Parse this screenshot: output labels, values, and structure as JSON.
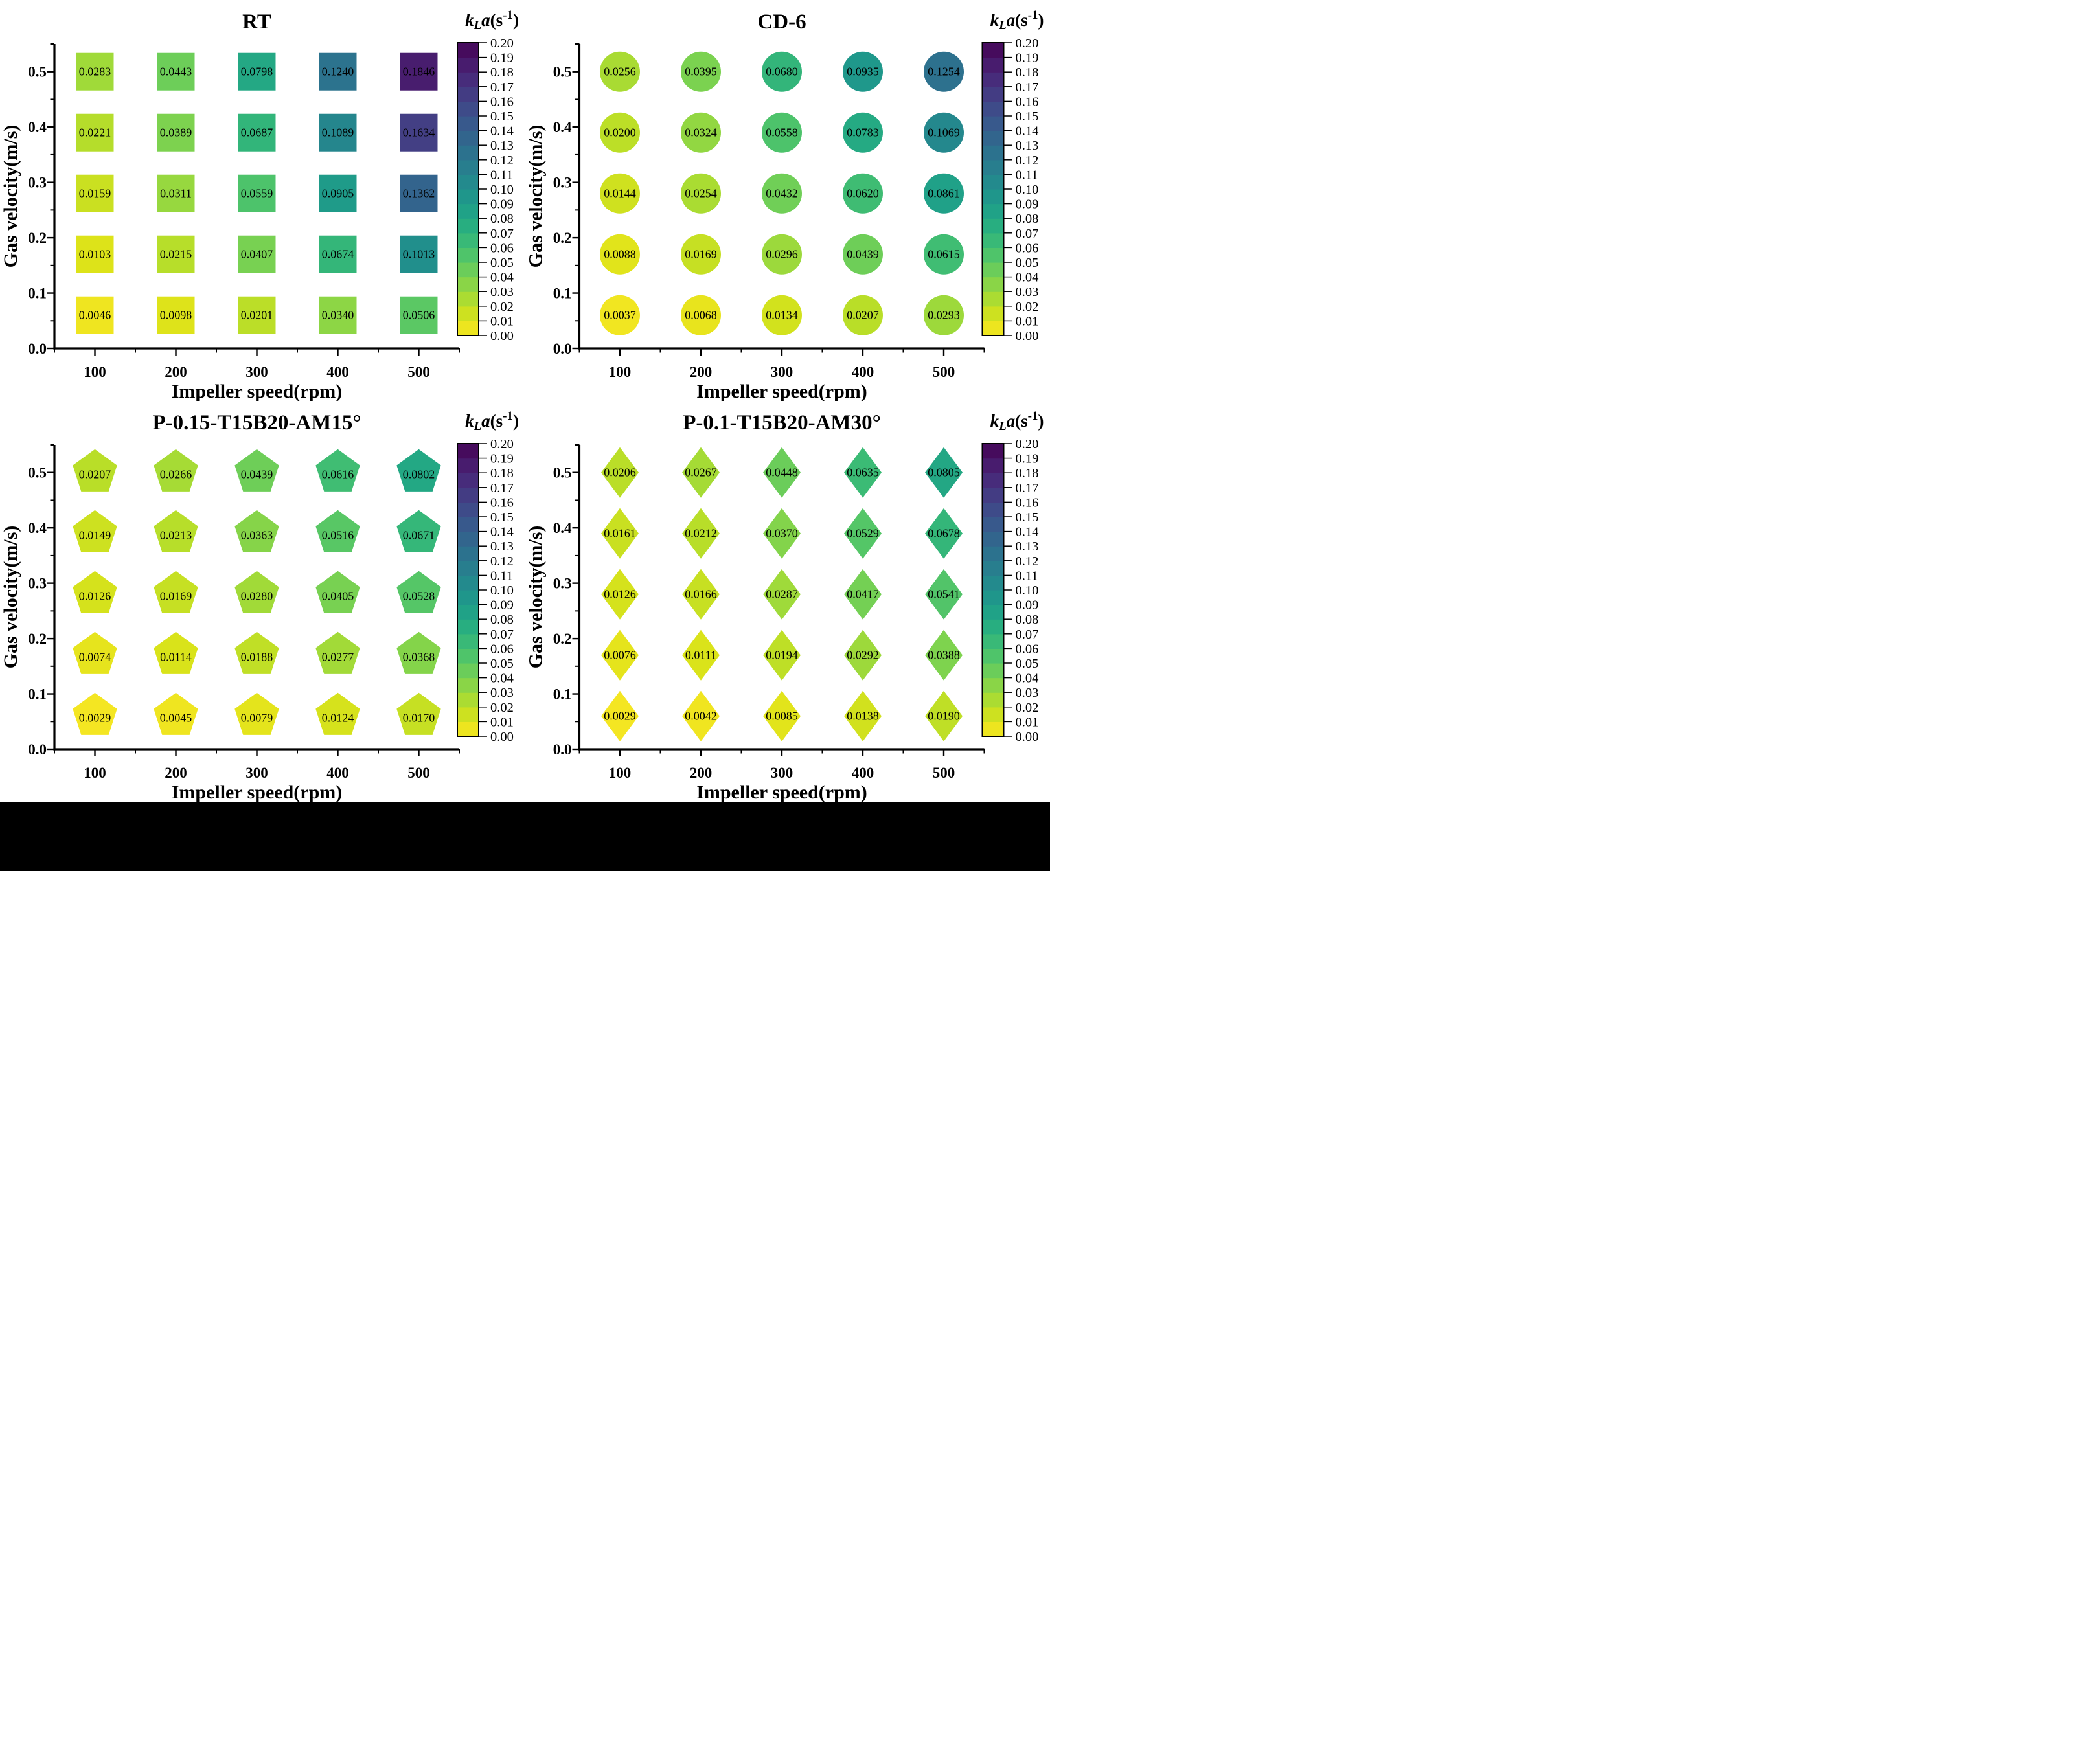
{
  "figure": {
    "background_color": "#ffffff",
    "bottom_bar_color": "#000000",
    "text_color": "#000000",
    "axes_shared": {
      "xlabel": "Impeller speed(rpm)",
      "ylabel": "Gas velocity(m/s)",
      "xlim": [
        50,
        550
      ],
      "ylim": [
        0.0,
        0.55
      ],
      "xtick_labels": [
        "100",
        "200",
        "300",
        "400",
        "500"
      ],
      "xtick_values": [
        100,
        200,
        300,
        400,
        500
      ],
      "x_minor_ticks": [
        50,
        150,
        250,
        350,
        450,
        550
      ],
      "ytick_labels": [
        "0.0",
        "0.1",
        "0.2",
        "0.3",
        "0.4",
        "0.5"
      ],
      "ytick_values": [
        0.0,
        0.1,
        0.2,
        0.3,
        0.4,
        0.5
      ],
      "y_minor_ticks": [
        0.05,
        0.15,
        0.25,
        0.35,
        0.45,
        0.55
      ],
      "grid": false
    },
    "colorbar": {
      "title_parts": {
        "k": "k",
        "sub": "L",
        "a": "a",
        "open": "(s",
        "sup": "-1",
        "close": ")"
      },
      "min": 0.0,
      "max": 0.2,
      "levels": 20,
      "tick_labels": [
        "0.00",
        "0.01",
        "0.02",
        "0.03",
        "0.04",
        "0.05",
        "0.06",
        "0.07",
        "0.08",
        "0.09",
        "0.10",
        "0.11",
        "0.12",
        "0.13",
        "0.14",
        "0.15",
        "0.16",
        "0.17",
        "0.18",
        "0.19",
        "0.20"
      ],
      "colormap": "viridis reversed (yellow = low, dark purple = high)",
      "viridis_stops": [
        "#440154",
        "#481567",
        "#482677",
        "#453781",
        "#404788",
        "#39568C",
        "#33638D",
        "#2D708E",
        "#287D8E",
        "#238A8D",
        "#1F968B",
        "#20A387",
        "#29AF7F",
        "#3CBB75",
        "#55C667",
        "#73D055",
        "#95D840",
        "#B8DE29",
        "#DCE319",
        "#FDE725"
      ]
    }
  },
  "chart_data": [
    {
      "type": "scatter",
      "title": "RT",
      "marker": "square",
      "xlabel": "Impeller speed(rpm)",
      "ylabel": "Gas velocity(m/s)",
      "x_values": [
        100,
        200,
        300,
        400,
        500
      ],
      "row_gas_velocities": [
        0.5,
        0.4,
        0.3,
        0.2,
        0.1
      ],
      "row_plot_positions": [
        0.5,
        0.39,
        0.28,
        0.17,
        0.06
      ],
      "values": [
        [
          0.0283,
          0.0443,
          0.0798,
          0.124,
          0.1846
        ],
        [
          0.0221,
          0.0389,
          0.0687,
          0.1089,
          0.1634
        ],
        [
          0.0159,
          0.0311,
          0.0559,
          0.0905,
          0.1362
        ],
        [
          0.0103,
          0.0215,
          0.0407,
          0.0674,
          0.1013
        ],
        [
          0.0046,
          0.0098,
          0.0201,
          0.034,
          0.0506
        ]
      ]
    },
    {
      "type": "scatter",
      "title": "CD-6",
      "marker": "circle",
      "xlabel": "Impeller speed(rpm)",
      "ylabel": "Gas velocity(m/s)",
      "x_values": [
        100,
        200,
        300,
        400,
        500
      ],
      "row_gas_velocities": [
        0.5,
        0.4,
        0.3,
        0.2,
        0.1
      ],
      "row_plot_positions": [
        0.5,
        0.39,
        0.28,
        0.17,
        0.06
      ],
      "values": [
        [
          0.0256,
          0.0395,
          0.068,
          0.0935,
          0.1254
        ],
        [
          0.02,
          0.0324,
          0.0558,
          0.0783,
          0.1069
        ],
        [
          0.0144,
          0.0254,
          0.0432,
          0.062,
          0.0861
        ],
        [
          0.0088,
          0.0169,
          0.0296,
          0.0439,
          0.0615
        ],
        [
          0.0037,
          0.0068,
          0.0134,
          0.0207,
          0.0293
        ]
      ]
    },
    {
      "type": "scatter",
      "title": "P-0.15-T15B20-AM15°",
      "marker": "pentagon",
      "xlabel": "Impeller speed(rpm)",
      "ylabel": "Gas velocity(m/s)",
      "x_values": [
        100,
        200,
        300,
        400,
        500
      ],
      "row_gas_velocities": [
        0.5,
        0.4,
        0.3,
        0.2,
        0.1
      ],
      "row_plot_positions": [
        0.5,
        0.39,
        0.28,
        0.17,
        0.06
      ],
      "values": [
        [
          0.0207,
          0.0266,
          0.0439,
          0.0616,
          0.0802
        ],
        [
          0.0149,
          0.0213,
          0.0363,
          0.0516,
          0.0671
        ],
        [
          0.0126,
          0.0169,
          0.028,
          0.0405,
          0.0528
        ],
        [
          0.0074,
          0.0114,
          0.0188,
          0.0277,
          0.0368
        ],
        [
          0.0029,
          0.0045,
          0.0079,
          0.0124,
          0.017
        ]
      ]
    },
    {
      "type": "scatter",
      "title": "P-0.1-T15B20-AM30°",
      "marker": "diamond",
      "xlabel": "Impeller speed(rpm)",
      "ylabel": "Gas velocity(m/s)",
      "x_values": [
        100,
        200,
        300,
        400,
        500
      ],
      "row_gas_velocities": [
        0.5,
        0.4,
        0.3,
        0.2,
        0.1
      ],
      "row_plot_positions": [
        0.5,
        0.39,
        0.28,
        0.17,
        0.06
      ],
      "values": [
        [
          0.0206,
          0.0267,
          0.0448,
          0.0635,
          0.0805
        ],
        [
          0.0161,
          0.0212,
          0.037,
          0.0529,
          0.0678
        ],
        [
          0.0126,
          0.0166,
          0.0287,
          0.0417,
          0.0541
        ],
        [
          0.0076,
          0.0111,
          0.0194,
          0.0292,
          0.0388
        ],
        [
          0.0029,
          0.0042,
          0.0085,
          0.0138,
          0.019
        ]
      ]
    }
  ]
}
